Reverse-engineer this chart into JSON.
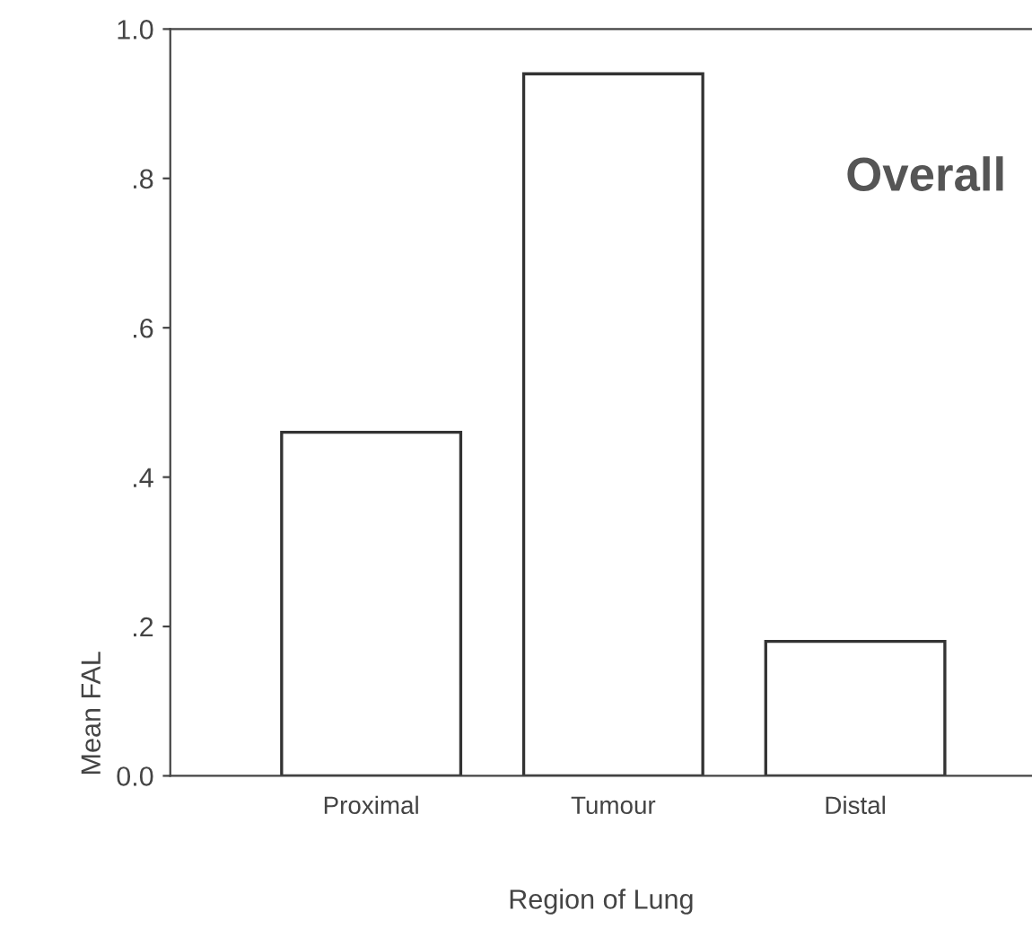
{
  "chart_data": {
    "type": "bar",
    "title": "Overall",
    "xlabel": "Region of Lung",
    "ylabel": "Mean FAL",
    "categories": [
      "Proximal",
      "Tumour",
      "Distal"
    ],
    "values": [
      0.46,
      0.94,
      0.18
    ],
    "color": "#ffffff",
    "ylim": [
      0,
      1.0
    ],
    "yticks": [
      {
        "value": 0,
        "label": "0.0"
      },
      {
        "value": 0.2,
        "label": ".2"
      },
      {
        "value": 0.4,
        "label": ".4"
      },
      {
        "value": 0.6,
        "label": ".6"
      },
      {
        "value": 0.8,
        "label": ".8"
      },
      {
        "value": 1.0,
        "label": "1.0"
      }
    ],
    "grid": false,
    "legend": false
  }
}
